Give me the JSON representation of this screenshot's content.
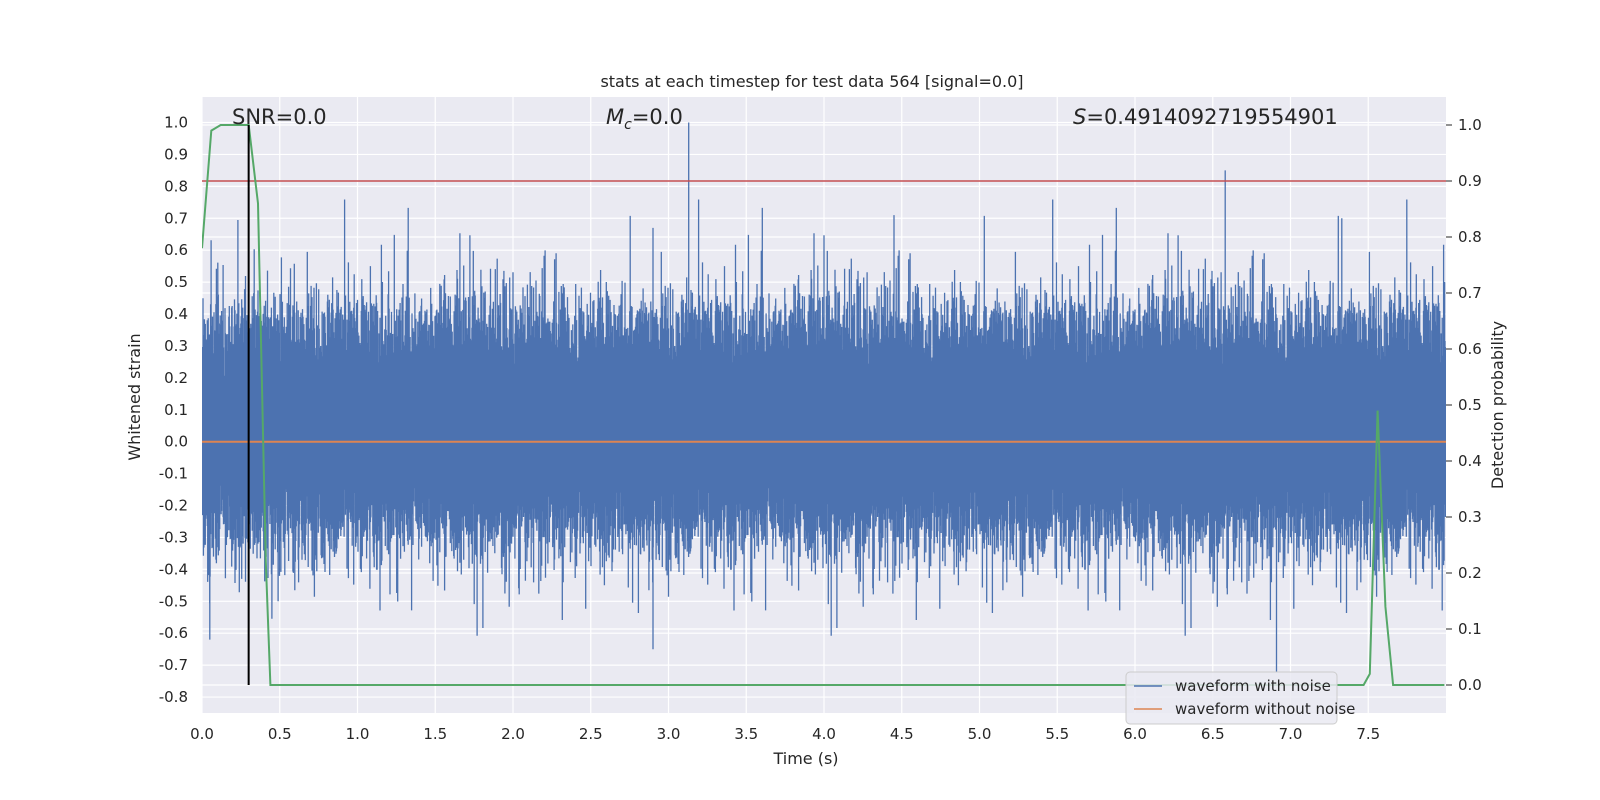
{
  "chart_data": {
    "type": "line",
    "title": "stats at each timestep for test data 564 [signal=0.0]",
    "xlabel": "Time (s)",
    "ylabel": "Whitened strain",
    "y2label": "Detection probability",
    "xlim": [
      0.0,
      8.0
    ],
    "ylim": [
      -0.85,
      1.08
    ],
    "y2lim": [
      -0.05,
      1.05
    ],
    "x_ticks": [
      "0.0",
      "0.5",
      "1.0",
      "1.5",
      "2.0",
      "2.5",
      "3.0",
      "3.5",
      "4.0",
      "4.5",
      "5.0",
      "5.5",
      "6.0",
      "6.5",
      "7.0",
      "7.5"
    ],
    "y_ticks": [
      "1.0",
      "0.9",
      "0.8",
      "0.7",
      "0.6",
      "0.5",
      "0.4",
      "0.3",
      "0.2",
      "0.1",
      "0.0",
      "-0.1",
      "-0.2",
      "-0.3",
      "-0.4",
      "-0.5",
      "-0.6",
      "-0.7",
      "-0.8"
    ],
    "y2_ticks": [
      "1.0",
      "0.9",
      "0.8",
      "0.7",
      "0.6",
      "0.5",
      "0.4",
      "0.3",
      "0.2",
      "0.1",
      "0.0"
    ],
    "annotations": {
      "snr": "SNR=0.0",
      "mc_symbol": "M",
      "mc_sub": "c",
      "mc_value": "=0.0",
      "s_symbol": "S",
      "s_value": "=0.4914092719554901"
    },
    "legend": {
      "placement": "lower right",
      "entries": [
        "waveform with noise",
        "waveform without noise"
      ]
    },
    "series": [
      {
        "name": "waveform with noise",
        "axis": "left",
        "color": "#4c72b0",
        "style": "dense noise band",
        "band_core": [
          -0.26,
          0.36
        ],
        "peak_spikes": [
          [
            3.13,
            1.0
          ],
          [
            6.58,
            0.85
          ],
          [
            4.45,
            0.71
          ],
          [
            7.33,
            0.7
          ],
          [
            2.9,
            0.67
          ],
          [
            6.91,
            -0.72
          ],
          [
            2.9,
            -0.65
          ],
          [
            0.05,
            -0.62
          ]
        ]
      },
      {
        "name": "waveform without noise",
        "axis": "left",
        "color": "#dd8452",
        "x": [
          0.0,
          8.0
        ],
        "y": [
          0.0,
          0.0
        ]
      },
      {
        "axis": "right",
        "color": "#55a868",
        "x": [
          0.0,
          0.06,
          0.12,
          0.18,
          0.24,
          0.3,
          0.36,
          0.41,
          0.44,
          7.47,
          7.51,
          7.56,
          7.61,
          7.66,
          7.72,
          7.99
        ],
        "y": [
          0.78,
          0.99,
          1.0,
          1.0,
          1.0,
          1.0,
          0.86,
          0.22,
          0.0,
          0.0,
          0.02,
          0.49,
          0.14,
          0.0,
          0.0,
          0.0
        ]
      }
    ],
    "hlines": [
      {
        "axis": "right",
        "y": 0.9,
        "color": "#c44e52"
      }
    ],
    "vlines": [
      {
        "axis": "right",
        "x": 0.3,
        "y_range": [
          0.0,
          1.0
        ],
        "color": "#000000"
      }
    ],
    "grid": true,
    "background": "#eaeaf2"
  }
}
